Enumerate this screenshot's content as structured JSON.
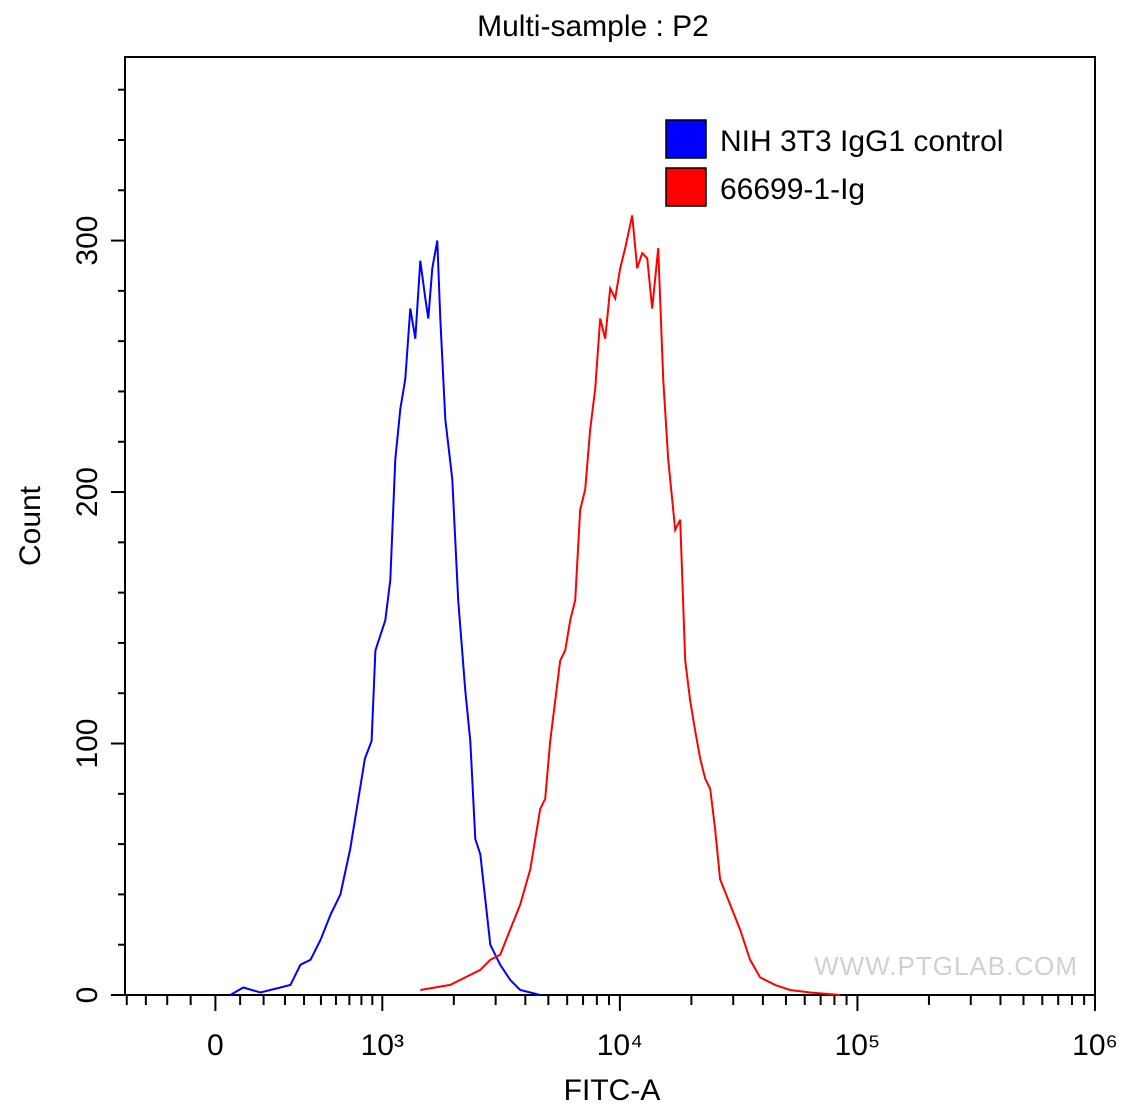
{
  "chart_data": {
    "type": "histogram-line",
    "title": "Multi-sample : P2",
    "x_label": "FITC-A",
    "y_label": "Count",
    "watermark": "WWW.PTGLAB.COM",
    "xscale": "biexponential",
    "xlim": [
      -410,
      1000000
    ],
    "ylim": [
      0,
      373
    ],
    "xticks": [
      0,
      {
        "value": 1000,
        "label": "10³"
      },
      {
        "value": 10000,
        "label": "10⁴"
      },
      {
        "value": 100000,
        "label": "10⁵"
      },
      {
        "value": 1000000,
        "label": "10⁶"
      }
    ],
    "xminorticks": [
      -400,
      -300,
      -200,
      -100,
      100,
      200,
      300,
      400,
      500,
      600,
      700,
      800,
      900,
      2000,
      3000,
      4000,
      5000,
      6000,
      7000,
      8000,
      9000,
      20000,
      30000,
      40000,
      50000,
      60000,
      70000,
      80000,
      90000,
      200000,
      300000,
      400000,
      500000,
      600000,
      700000,
      800000,
      900000
    ],
    "yticks": [
      0,
      100,
      200,
      300
    ],
    "yminorticks": [
      20,
      40,
      60,
      80,
      120,
      140,
      160,
      180,
      220,
      240,
      260,
      280,
      320,
      340,
      360
    ],
    "legend": "top-right",
    "series": [
      {
        "name": "NIH 3T3 IgG1 control",
        "color": "#0000ff",
        "x": [
          60,
          113,
          186,
          278,
          328,
          380,
          437,
          498,
          563,
          632,
          707,
          788,
          831,
          893,
          930,
          1029,
          1080,
          1134,
          1190,
          1250,
          1312,
          1377,
          1445,
          1517,
          1561,
          1623,
          1704,
          1754,
          1841,
          1970,
          2087,
          2235,
          2346,
          2462,
          2585,
          2713,
          2848,
          3136,
          3455,
          3807,
          4621
        ],
        "values": [
          0,
          3,
          1,
          3,
          4,
          12,
          14,
          22,
          32,
          40,
          58,
          82,
          94,
          101,
          137,
          149,
          165,
          213,
          233,
          245,
          273,
          261,
          292,
          277,
          269,
          289,
          300,
          269,
          229,
          205,
          157,
          121,
          101,
          62,
          56,
          38,
          20,
          12,
          6,
          2,
          0
        ]
      },
      {
        "name": "66699-1-Ig",
        "color": "#ff0000",
        "x": [
          1445,
          1932,
          2346,
          2585,
          2848,
          3136,
          3455,
          3807,
          4195,
          4621,
          4851,
          5091,
          5344,
          5609,
          5888,
          6180,
          6486,
          6808,
          7145,
          7499,
          7873,
          8264,
          8674,
          9104,
          9555,
          10030,
          10527,
          11270,
          11830,
          12415,
          13030,
          13677,
          14497,
          15216,
          15971,
          17093,
          17940,
          18830,
          19765,
          20745,
          21774,
          22856,
          23990,
          25178,
          26424,
          29109,
          32067,
          35336,
          38930,
          45010,
          52044,
          63185,
          84530
        ],
        "values": [
          2,
          4,
          8,
          10,
          14,
          16,
          26,
          36,
          50,
          74,
          78,
          101,
          117,
          133,
          137,
          149,
          157,
          193,
          201,
          225,
          241,
          269,
          261,
          281,
          277,
          289,
          297,
          310,
          289,
          295,
          293,
          273,
          297,
          245,
          213,
          185,
          189,
          133,
          117,
          105,
          94,
          86,
          82,
          66,
          46,
          36,
          26,
          14,
          7,
          4,
          2,
          1,
          0
        ]
      }
    ]
  }
}
